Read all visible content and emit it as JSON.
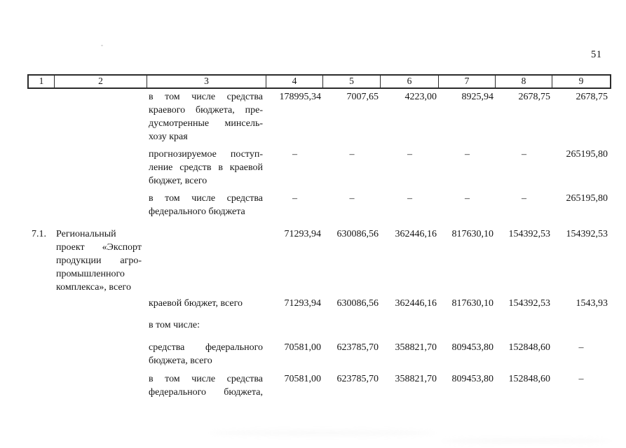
{
  "page": {
    "number": "51"
  },
  "colors": {
    "background": "#ffffff",
    "text": "#161616",
    "table_border": "#2b2b2b"
  },
  "table": {
    "header_columns": [
      "1",
      "2",
      "3",
      "4",
      "5",
      "6",
      "7",
      "8",
      "9"
    ],
    "rows": [
      {
        "num": "",
        "name_lines": [],
        "descriptor_lines": [
          "в том числе средства",
          "краевого бюджета, пре-",
          "дусмотренные минсель-",
          "хозу края"
        ],
        "values": [
          "178995,34",
          "7007,65",
          "4223,00",
          "8925,94",
          "2678,75",
          "2678,75"
        ]
      },
      {
        "num": "",
        "name_lines": [],
        "descriptor_lines": [
          "прогнозируемое поступ-",
          "ление средств в краевой",
          "бюджет, всего"
        ],
        "values": [
          "–",
          "–",
          "–",
          "–",
          "–",
          "265195,80"
        ]
      },
      {
        "num": "",
        "name_lines": [],
        "descriptor_lines": [
          "в том числе средства",
          "федерального бюджета"
        ],
        "values": [
          "–",
          "–",
          "–",
          "–",
          "–",
          "265195,80"
        ]
      },
      {
        "num": "7.1.",
        "name_lines": [
          "Региональный",
          "проект «Экспорт",
          "продукции агро-",
          "промышленного",
          "комплекса», всего"
        ],
        "descriptor_lines": [],
        "values": [
          "71293,94",
          "630086,56",
          "362446,16",
          "817630,10",
          "154392,53",
          "154392,53"
        ]
      },
      {
        "num": "",
        "name_lines": [],
        "descriptor_lines": [
          "краевой бюджет, всего"
        ],
        "values": [
          "71293,94",
          "630086,56",
          "362446,16",
          "817630,10",
          "154392,53",
          "1543,93"
        ]
      },
      {
        "num": "",
        "name_lines": [],
        "descriptor_lines": [
          "в том числе:"
        ],
        "values": [
          "",
          "",
          "",
          "",
          "",
          ""
        ]
      },
      {
        "num": "",
        "name_lines": [],
        "descriptor_lines": [
          "средства федерального",
          "бюджета, всего"
        ],
        "values": [
          "70581,00",
          "623785,70",
          "358821,70",
          "809453,80",
          "152848,60",
          "–"
        ]
      },
      {
        "num": "",
        "name_lines": [],
        "descriptor_lines": [
          "в том числе средства",
          "федерального бюджета,"
        ],
        "justify_all": true,
        "values": [
          "70581,00",
          "623785,70",
          "358821,70",
          "809453,80",
          "152848,60",
          "–"
        ]
      }
    ]
  }
}
